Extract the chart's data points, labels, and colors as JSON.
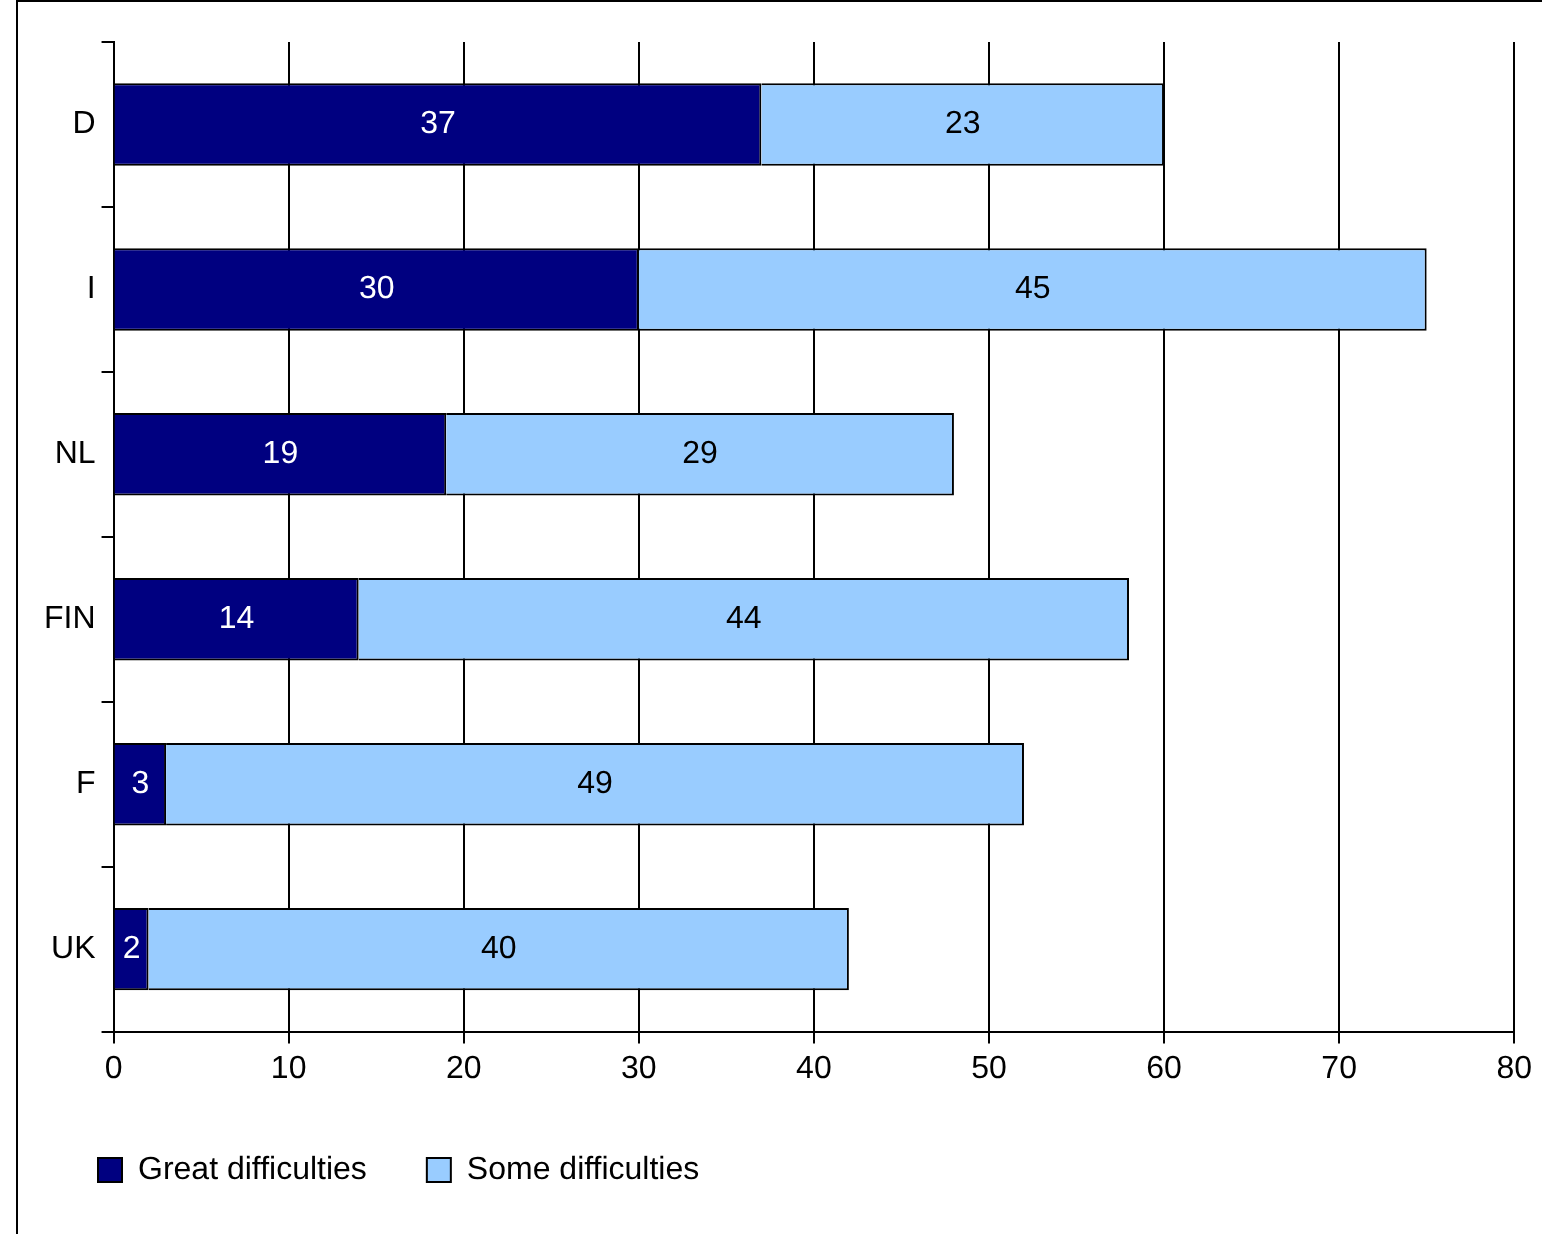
{
  "chart_data": {
    "type": "bar",
    "orientation": "horizontal",
    "stacked": true,
    "categories": [
      "D",
      "I",
      "NL",
      "FIN",
      "F",
      "UK"
    ],
    "series": [
      {
        "name": "Great difficulties",
        "color": "#000080",
        "values": [
          37,
          30,
          19,
          14,
          3,
          2
        ]
      },
      {
        "name": "Some difficulties",
        "color": "#99ccff",
        "values": [
          23,
          45,
          29,
          44,
          49,
          40
        ]
      }
    ],
    "xlim": [
      0,
      80
    ],
    "xticks": [
      0,
      10,
      20,
      30,
      40,
      50,
      60,
      70,
      80
    ],
    "grid": "x",
    "legend": "bottom",
    "data_labels": true
  }
}
